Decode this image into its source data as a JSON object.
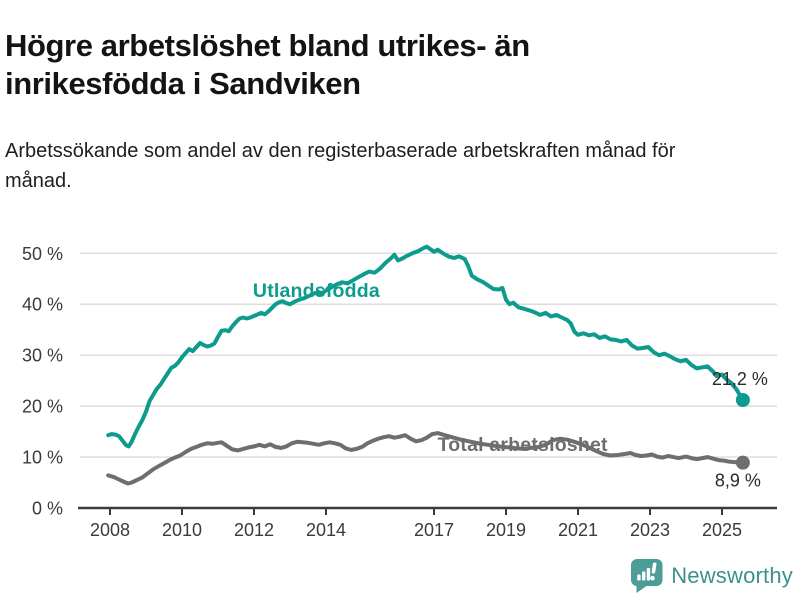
{
  "footer": {
    "brand": "Newsworthy",
    "logo_icon": "bar-chart-speech-bubble-icon"
  },
  "colors": {
    "accent_teal": "#0d9b8e",
    "series_gray": "#6e6e6e",
    "value_label": "#2a2a2a",
    "axis_text": "#3b3b3b",
    "gridline": "#dcdcdc",
    "logo_teal": "#4c9c98",
    "brand_text": "#3d918d"
  },
  "chart_data": {
    "type": "line",
    "title": "Högre arbetslöshet bland utrikes- än inrikesfödda i Sandviken",
    "subtitle": "Arbetssökande som andel av den registerbaserade arbetskraften månad för månad.",
    "unit": "%",
    "grid": true,
    "legend_position": "inline-labels",
    "xlim": [
      2007.2,
      2026.5
    ],
    "ylim": [
      0,
      53
    ],
    "x_ticks": [
      {
        "year": 2008,
        "label": "2008"
      },
      {
        "year": 2010,
        "label": "2010"
      },
      {
        "year": 2012,
        "label": "2012"
      },
      {
        "year": 2014,
        "label": "2014"
      },
      {
        "year": 2017,
        "label": "2017"
      },
      {
        "year": 2019,
        "label": "2019"
      },
      {
        "year": 2021,
        "label": "2021"
      },
      {
        "year": 2023,
        "label": "2023"
      },
      {
        "year": 2025,
        "label": "2025"
      }
    ],
    "y_ticks": [
      {
        "value": 0,
        "label": "0 %"
      },
      {
        "value": 10,
        "label": "10 %"
      },
      {
        "value": 20,
        "label": "20 %"
      },
      {
        "value": 30,
        "label": "30 %"
      },
      {
        "value": 40,
        "label": "40 %"
      },
      {
        "value": 50,
        "label": "50 %"
      }
    ],
    "series": [
      {
        "name": "Utlandsfödda",
        "color": "#0d9b8e",
        "end_label": "21,2 %",
        "end_value": 21.2,
        "label_anchor": {
          "year": 2011.97,
          "value": 41.4
        },
        "points": [
          [
            2007.95,
            14.3
          ],
          [
            2008.05,
            14.5
          ],
          [
            2008.15,
            14.4
          ],
          [
            2008.25,
            14.1
          ],
          [
            2008.35,
            13.2
          ],
          [
            2008.45,
            12.3
          ],
          [
            2008.52,
            12.1
          ],
          [
            2008.6,
            13.0
          ],
          [
            2008.7,
            14.6
          ],
          [
            2008.8,
            16.0
          ],
          [
            2008.9,
            17.3
          ],
          [
            2009.0,
            18.9
          ],
          [
            2009.1,
            21.0
          ],
          [
            2009.2,
            22.2
          ],
          [
            2009.3,
            23.4
          ],
          [
            2009.4,
            24.2
          ],
          [
            2009.5,
            25.3
          ],
          [
            2009.6,
            26.4
          ],
          [
            2009.7,
            27.5
          ],
          [
            2009.8,
            27.9
          ],
          [
            2009.9,
            28.6
          ],
          [
            2010.0,
            29.6
          ],
          [
            2010.1,
            30.4
          ],
          [
            2010.2,
            31.2
          ],
          [
            2010.3,
            30.8
          ],
          [
            2010.4,
            31.6
          ],
          [
            2010.5,
            32.4
          ],
          [
            2010.6,
            32.0
          ],
          [
            2010.7,
            31.7
          ],
          [
            2010.8,
            31.9
          ],
          [
            2010.9,
            32.3
          ],
          [
            2011.0,
            33.6
          ],
          [
            2011.1,
            34.8
          ],
          [
            2011.2,
            34.9
          ],
          [
            2011.3,
            34.7
          ],
          [
            2011.4,
            35.7
          ],
          [
            2011.5,
            36.5
          ],
          [
            2011.6,
            37.2
          ],
          [
            2011.7,
            37.4
          ],
          [
            2011.8,
            37.2
          ],
          [
            2011.9,
            37.4
          ],
          [
            2012.0,
            37.7
          ],
          [
            2012.1,
            38.0
          ],
          [
            2012.2,
            38.3
          ],
          [
            2012.3,
            38.0
          ],
          [
            2012.4,
            38.6
          ],
          [
            2012.5,
            39.3
          ],
          [
            2012.6,
            40.0
          ],
          [
            2012.7,
            40.4
          ],
          [
            2012.8,
            40.6
          ],
          [
            2012.9,
            40.2
          ],
          [
            2013.0,
            40.0
          ],
          [
            2013.1,
            40.4
          ],
          [
            2013.25,
            40.9
          ],
          [
            2013.4,
            41.2
          ],
          [
            2013.55,
            41.7
          ],
          [
            2013.7,
            42.2
          ],
          [
            2013.85,
            42.0
          ],
          [
            2014.0,
            42.7
          ],
          [
            2014.15,
            43.3
          ],
          [
            2014.3,
            43.9
          ],
          [
            2014.45,
            44.3
          ],
          [
            2014.6,
            44.1
          ],
          [
            2014.75,
            44.7
          ],
          [
            2014.9,
            45.3
          ],
          [
            2015.05,
            45.9
          ],
          [
            2015.2,
            46.4
          ],
          [
            2015.35,
            46.2
          ],
          [
            2015.5,
            47.0
          ],
          [
            2015.65,
            48.1
          ],
          [
            2015.8,
            49.0
          ],
          [
            2015.9,
            49.7
          ],
          [
            2016.0,
            48.6
          ],
          [
            2016.1,
            48.9
          ],
          [
            2016.25,
            49.5
          ],
          [
            2016.4,
            50.0
          ],
          [
            2016.55,
            50.4
          ],
          [
            2016.7,
            51.0
          ],
          [
            2016.8,
            51.3
          ],
          [
            2016.9,
            50.8
          ],
          [
            2017.0,
            50.3
          ],
          [
            2017.1,
            50.7
          ],
          [
            2017.25,
            50.0
          ],
          [
            2017.4,
            49.4
          ],
          [
            2017.55,
            49.1
          ],
          [
            2017.7,
            49.4
          ],
          [
            2017.85,
            48.9
          ],
          [
            2017.95,
            47.5
          ],
          [
            2018.05,
            45.6
          ],
          [
            2018.2,
            44.9
          ],
          [
            2018.35,
            44.4
          ],
          [
            2018.5,
            43.7
          ],
          [
            2018.65,
            43.0
          ],
          [
            2018.8,
            42.9
          ],
          [
            2018.9,
            43.2
          ],
          [
            2019.0,
            40.9
          ],
          [
            2019.1,
            40.0
          ],
          [
            2019.2,
            40.3
          ],
          [
            2019.35,
            39.4
          ],
          [
            2019.5,
            39.1
          ],
          [
            2019.65,
            38.8
          ],
          [
            2019.8,
            38.4
          ],
          [
            2019.95,
            37.9
          ],
          [
            2020.1,
            38.3
          ],
          [
            2020.25,
            37.6
          ],
          [
            2020.4,
            37.9
          ],
          [
            2020.55,
            37.4
          ],
          [
            2020.7,
            36.9
          ],
          [
            2020.8,
            36.2
          ],
          [
            2020.9,
            34.6
          ],
          [
            2021.0,
            34.0
          ],
          [
            2021.15,
            34.3
          ],
          [
            2021.3,
            33.9
          ],
          [
            2021.45,
            34.1
          ],
          [
            2021.6,
            33.4
          ],
          [
            2021.75,
            33.7
          ],
          [
            2021.9,
            33.1
          ],
          [
            2022.05,
            33.0
          ],
          [
            2022.2,
            32.7
          ],
          [
            2022.35,
            33.0
          ],
          [
            2022.5,
            31.9
          ],
          [
            2022.65,
            31.3
          ],
          [
            2022.8,
            31.4
          ],
          [
            2022.95,
            31.6
          ],
          [
            2023.1,
            30.6
          ],
          [
            2023.25,
            30.0
          ],
          [
            2023.4,
            30.3
          ],
          [
            2023.55,
            29.8
          ],
          [
            2023.7,
            29.2
          ],
          [
            2023.85,
            28.8
          ],
          [
            2024.0,
            29.1
          ],
          [
            2024.15,
            28.1
          ],
          [
            2024.3,
            27.4
          ],
          [
            2024.45,
            27.6
          ],
          [
            2024.6,
            27.8
          ],
          [
            2024.75,
            26.8
          ],
          [
            2024.85,
            25.9
          ],
          [
            2025.0,
            26.2
          ],
          [
            2025.1,
            25.4
          ],
          [
            2025.25,
            24.6
          ],
          [
            2025.4,
            23.3
          ],
          [
            2025.58,
            21.2
          ]
        ]
      },
      {
        "name": "Total arbetslöshet",
        "color": "#6e6e6e",
        "end_label": "8,9 %",
        "end_value": 8.9,
        "label_anchor": {
          "year": 2017.1,
          "value": 11.2
        },
        "points": [
          [
            2007.95,
            6.4
          ],
          [
            2008.1,
            6.1
          ],
          [
            2008.25,
            5.6
          ],
          [
            2008.4,
            5.1
          ],
          [
            2008.5,
            4.8
          ],
          [
            2008.6,
            5.0
          ],
          [
            2008.75,
            5.5
          ],
          [
            2008.9,
            6.0
          ],
          [
            2009.05,
            6.8
          ],
          [
            2009.2,
            7.6
          ],
          [
            2009.35,
            8.2
          ],
          [
            2009.5,
            8.8
          ],
          [
            2009.65,
            9.4
          ],
          [
            2009.8,
            9.9
          ],
          [
            2009.95,
            10.3
          ],
          [
            2010.1,
            11.0
          ],
          [
            2010.25,
            11.6
          ],
          [
            2010.4,
            12.0
          ],
          [
            2010.55,
            12.4
          ],
          [
            2010.7,
            12.7
          ],
          [
            2010.85,
            12.6
          ],
          [
            2011.0,
            12.8
          ],
          [
            2011.1,
            12.9
          ],
          [
            2011.25,
            12.2
          ],
          [
            2011.4,
            11.5
          ],
          [
            2011.55,
            11.3
          ],
          [
            2011.7,
            11.6
          ],
          [
            2011.85,
            11.9
          ],
          [
            2012.0,
            12.1
          ],
          [
            2012.15,
            12.4
          ],
          [
            2012.3,
            12.1
          ],
          [
            2012.45,
            12.5
          ],
          [
            2012.6,
            12.0
          ],
          [
            2012.75,
            11.8
          ],
          [
            2012.9,
            12.1
          ],
          [
            2013.05,
            12.7
          ],
          [
            2013.2,
            13.0
          ],
          [
            2013.35,
            12.9
          ],
          [
            2013.5,
            12.8
          ],
          [
            2013.65,
            12.6
          ],
          [
            2013.8,
            12.4
          ],
          [
            2013.95,
            12.7
          ],
          [
            2014.1,
            12.9
          ],
          [
            2014.25,
            12.7
          ],
          [
            2014.4,
            12.4
          ],
          [
            2014.55,
            11.7
          ],
          [
            2014.7,
            11.4
          ],
          [
            2014.85,
            11.6
          ],
          [
            2015.0,
            12.0
          ],
          [
            2015.15,
            12.7
          ],
          [
            2015.3,
            13.2
          ],
          [
            2015.45,
            13.6
          ],
          [
            2015.6,
            13.9
          ],
          [
            2015.75,
            14.1
          ],
          [
            2015.9,
            13.8
          ],
          [
            2016.05,
            14.0
          ],
          [
            2016.2,
            14.3
          ],
          [
            2016.35,
            13.6
          ],
          [
            2016.5,
            13.1
          ],
          [
            2016.65,
            13.3
          ],
          [
            2016.8,
            13.8
          ],
          [
            2016.95,
            14.5
          ],
          [
            2017.1,
            14.7
          ],
          [
            2017.3,
            14.3
          ],
          [
            2017.5,
            13.9
          ],
          [
            2017.7,
            13.5
          ],
          [
            2017.9,
            13.2
          ],
          [
            2018.1,
            12.9
          ],
          [
            2018.3,
            12.6
          ],
          [
            2018.5,
            12.4
          ],
          [
            2018.7,
            12.2
          ],
          [
            2018.9,
            12.0
          ],
          [
            2019.1,
            11.9
          ],
          [
            2019.3,
            11.7
          ],
          [
            2019.5,
            11.6
          ],
          [
            2019.7,
            11.8
          ],
          [
            2019.9,
            12.0
          ],
          [
            2020.1,
            12.4
          ],
          [
            2020.3,
            13.3
          ],
          [
            2020.5,
            13.6
          ],
          [
            2020.7,
            13.4
          ],
          [
            2020.9,
            13.0
          ],
          [
            2021.1,
            12.5
          ],
          [
            2021.3,
            11.9
          ],
          [
            2021.5,
            11.2
          ],
          [
            2021.7,
            10.6
          ],
          [
            2021.9,
            10.3
          ],
          [
            2022.1,
            10.4
          ],
          [
            2022.3,
            10.6
          ],
          [
            2022.45,
            10.8
          ],
          [
            2022.6,
            10.4
          ],
          [
            2022.75,
            10.2
          ],
          [
            2022.9,
            10.3
          ],
          [
            2023.05,
            10.5
          ],
          [
            2023.2,
            10.1
          ],
          [
            2023.35,
            9.9
          ],
          [
            2023.5,
            10.2
          ],
          [
            2023.65,
            10.0
          ],
          [
            2023.8,
            9.8
          ],
          [
            2024.0,
            10.1
          ],
          [
            2024.15,
            9.8
          ],
          [
            2024.3,
            9.6
          ],
          [
            2024.45,
            9.8
          ],
          [
            2024.6,
            10.0
          ],
          [
            2024.75,
            9.7
          ],
          [
            2024.9,
            9.4
          ],
          [
            2025.05,
            9.3
          ],
          [
            2025.2,
            9.1
          ],
          [
            2025.4,
            9.0
          ],
          [
            2025.58,
            8.9
          ]
        ]
      }
    ]
  }
}
